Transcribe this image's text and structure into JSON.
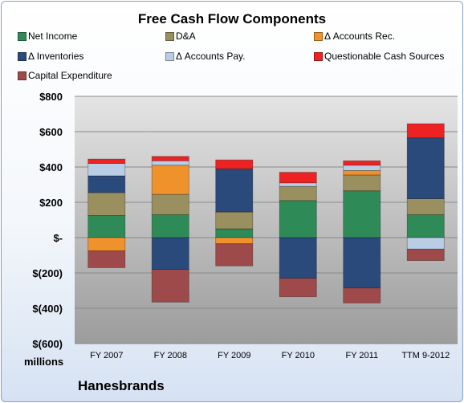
{
  "chart_data": {
    "type": "bar",
    "stacked": true,
    "title": "Free Cash Flow Components",
    "xlabel": "",
    "ylabel": "",
    "units_label": "millions",
    "company": "Hanesbrands",
    "categories": [
      "FY 2007",
      "FY 2008",
      "FY 2009",
      "FY 2010",
      "FY 2011",
      "TTM 9-2012"
    ],
    "ylim": [
      -600,
      800
    ],
    "yticks": [
      800,
      600,
      400,
      200,
      0,
      -200,
      -400,
      -600
    ],
    "ytick_labels": [
      "$800",
      "$600",
      "$400",
      "$200",
      "$-",
      "$(200)",
      "$(400)",
      "$(600)"
    ],
    "grid": true,
    "legend_position": "top",
    "series": [
      {
        "name": "Net Income",
        "color": "#2e8b57",
        "values": [
          125,
          130,
          50,
          210,
          265,
          130
        ]
      },
      {
        "name": "D&A",
        "color": "#9a8f5e",
        "values": [
          130,
          115,
          95,
          80,
          90,
          90
        ]
      },
      {
        "name": "Δ Accounts Rec.",
        "color": "#f0922c",
        "values": [
          -75,
          165,
          -35,
          0,
          25,
          0
        ]
      },
      {
        "name": "Δ Inventories",
        "color": "#2a4a7c",
        "values": [
          95,
          -180,
          245,
          -230,
          -285,
          345
        ]
      },
      {
        "name": "Δ Accounts Pay.",
        "color": "#b9cde5",
        "values": [
          70,
          25,
          0,
          20,
          30,
          -65
        ]
      },
      {
        "name": "Questionable Cash Sources",
        "color": "#ee2222",
        "values": [
          25,
          25,
          50,
          60,
          25,
          80
        ]
      },
      {
        "name": "Capital Expenditure",
        "color": "#9e4a4a",
        "values": [
          -95,
          -185,
          -125,
          -105,
          -85,
          -65
        ]
      }
    ]
  }
}
